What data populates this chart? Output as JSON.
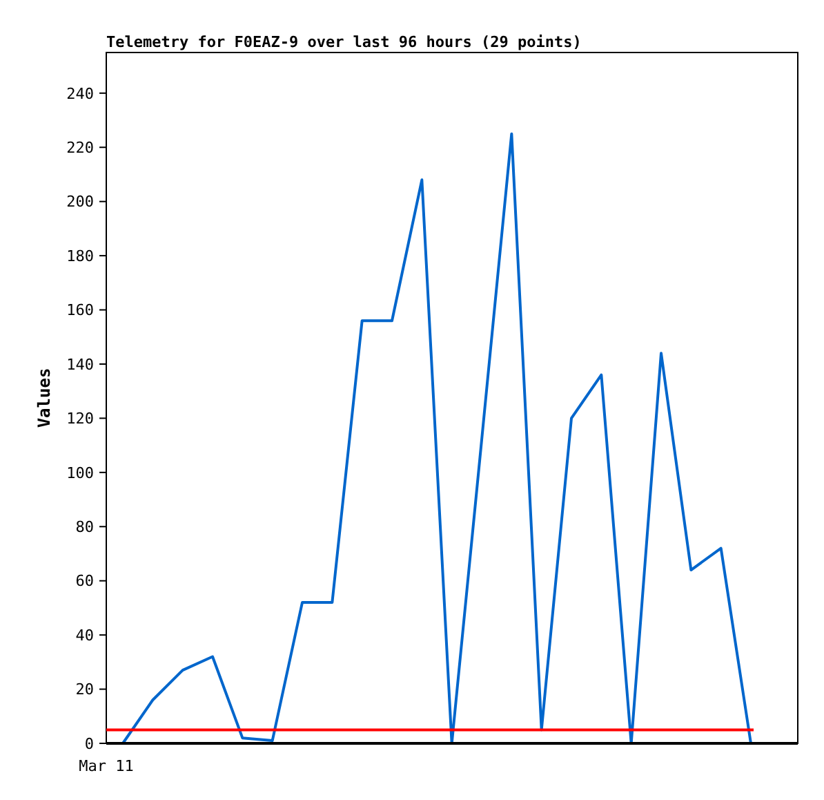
{
  "chart_data": {
    "type": "line",
    "title": "Telemetry for F0EAZ-9 over last 96 hours (29 points)",
    "ylabel": "Values",
    "annotations": [
      "Mar 11"
    ],
    "ylim": [
      0,
      255
    ],
    "yticks": [
      0,
      20,
      40,
      60,
      80,
      100,
      120,
      140,
      160,
      180,
      200,
      220,
      240
    ],
    "grid": false,
    "categories": [
      null,
      null,
      null,
      null,
      null,
      null,
      null,
      null,
      null,
      null,
      null,
      null,
      null,
      null,
      null,
      null,
      null,
      null,
      null,
      null,
      null,
      null
    ],
    "ref_lines": [
      {
        "axis": "y",
        "value": 5,
        "color": "#ff0000"
      }
    ],
    "series": [
      {
        "color": "#0066cc",
        "values": [
          0,
          16,
          27,
          32,
          2,
          1,
          52,
          52,
          156,
          156,
          208,
          0,
          112,
          225,
          5,
          120,
          136,
          0,
          144,
          64,
          72,
          0
        ]
      }
    ]
  }
}
